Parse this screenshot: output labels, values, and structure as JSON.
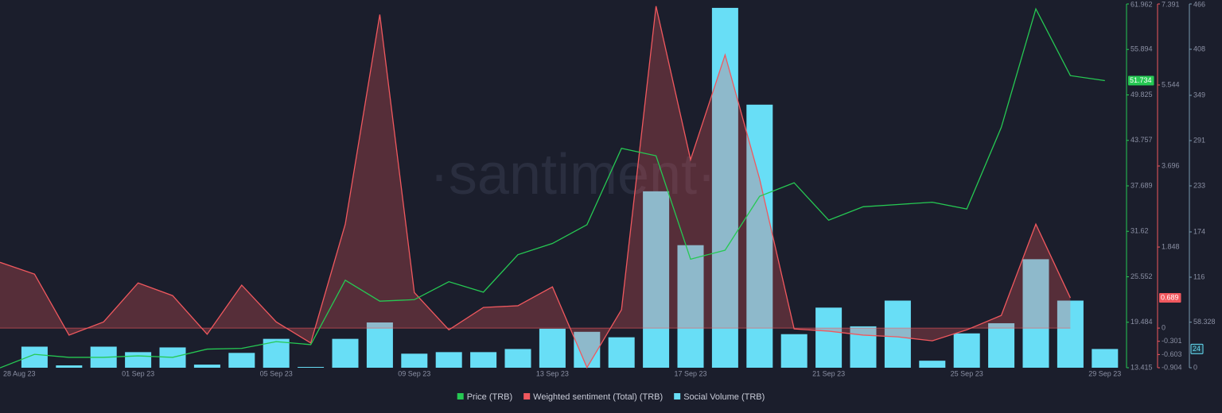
{
  "chart_data": {
    "type": "combo",
    "watermark": "·santiment·",
    "categories": [
      "28 Aug 23",
      null,
      null,
      null,
      "01 Sep 23",
      null,
      null,
      null,
      "05 Sep 23",
      null,
      null,
      null,
      "09 Sep 23",
      null,
      null,
      null,
      "13 Sep 23",
      null,
      null,
      null,
      "17 Sep 23",
      null,
      null,
      null,
      "21 Sep 23",
      null,
      null,
      null,
      "25 Sep 23",
      null,
      null,
      null,
      "29 Sep 23"
    ],
    "ylim": [
      13.415,
      61.962
    ],
    "yticks": [
      13.415,
      19.484,
      25.552,
      31.62,
      37.689,
      43.757,
      49.825,
      55.894,
      61.962
    ],
    "y2lim": [
      -0.904,
      7.391
    ],
    "y2ticks": [
      -0.904,
      -0.603,
      -0.301,
      0,
      1.848,
      3.696,
      5.544,
      7.391
    ],
    "y3lim": [
      0,
      466
    ],
    "y3ticks": [
      0,
      58.328,
      116,
      174,
      233,
      291,
      349,
      408,
      466
    ],
    "series": [
      {
        "name": "Price (TRB)",
        "type": "line",
        "axis": "y",
        "color": "#26c953",
        "values": [
          13.4,
          15.2,
          14.8,
          14.8,
          15.0,
          14.8,
          15.9,
          16.0,
          16.9,
          16.5,
          25.1,
          22.3,
          22.5,
          24.9,
          23.5,
          28.5,
          30.0,
          32.5,
          42.7,
          41.7,
          27.9,
          29.1,
          36.3,
          38.1,
          33.1,
          34.9,
          35.2,
          35.5,
          34.6,
          45.5,
          61.3,
          52.4,
          51.734
        ]
      },
      {
        "name": "Weighted sentiment (Total) (TRB)",
        "type": "area",
        "axis": "y2",
        "color": "#f0585e",
        "values": [
          1.5,
          1.23,
          -0.16,
          0.14,
          1.03,
          0.74,
          -0.14,
          0.98,
          0.14,
          -0.34,
          2.37,
          7.15,
          0.81,
          -0.04,
          0.47,
          0.51,
          0.94,
          -0.9,
          0.42,
          7.34,
          3.84,
          6.23,
          3.4,
          -0.02,
          -0.07,
          -0.16,
          -0.2,
          -0.29,
          -0.04,
          0.29,
          2.37,
          0.689,
          null
        ]
      },
      {
        "name": "Social Volume (TRB)",
        "type": "bar",
        "axis": "y3",
        "color": "#68def6",
        "values": [
          0,
          27,
          3,
          27,
          20,
          26,
          4,
          19,
          37,
          1,
          37,
          58,
          18,
          20,
          20,
          24,
          50,
          46,
          39,
          226,
          157,
          461,
          337,
          43,
          77,
          53,
          86,
          9,
          44,
          57,
          139,
          86,
          24
        ]
      }
    ]
  }
}
